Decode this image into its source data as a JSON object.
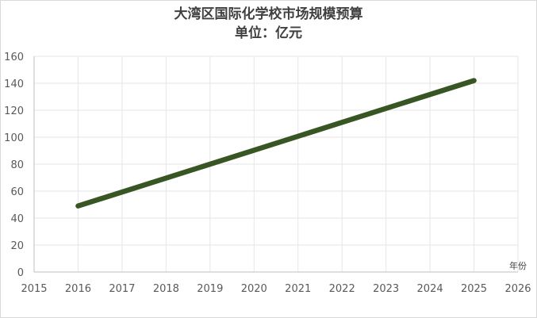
{
  "chart_data": {
    "type": "line",
    "title": "大湾区国际化学校市场规模预算",
    "subtitle": "单位：亿元",
    "xlabel": "年份",
    "ylabel": "",
    "x": [
      2016,
      2025
    ],
    "series": [
      {
        "values": [
          49,
          142
        ],
        "color": "#375623"
      }
    ],
    "xlim": [
      2015,
      2026
    ],
    "ylim": [
      0,
      160
    ],
    "x_ticks": [
      2015,
      2016,
      2017,
      2018,
      2019,
      2020,
      2021,
      2022,
      2023,
      2024,
      2025,
      2026
    ],
    "y_ticks": [
      0,
      20,
      40,
      60,
      80,
      100,
      120,
      140,
      160
    ],
    "grid": true,
    "colors": {
      "gridline": "#e6e6e6",
      "axis": "#bfbfbf",
      "series": "#375623"
    }
  }
}
